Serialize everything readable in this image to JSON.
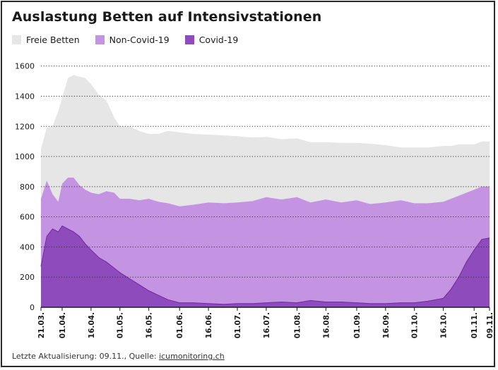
{
  "title": "Auslastung Betten auf Intensivstationen",
  "footer": {
    "prefix": "Letzte Aktualisierung: 09.11., Quelle: ",
    "source_link": "icumonitoring.ch"
  },
  "colors": {
    "freie_betten": "#e6e6e6",
    "non_covid": "#c494e2",
    "covid": "#8e4bbc",
    "covid_edge": "#6e2a9c",
    "grid": "#333333",
    "axis": "#1a1a1a"
  },
  "chart_data": {
    "type": "area",
    "stacked": true,
    "title": "Auslastung Betten auf Intensivstationen",
    "xlabel": "",
    "ylabel": "",
    "ylim": [
      0,
      1650
    ],
    "yticks": [
      0,
      200,
      400,
      600,
      800,
      1000,
      1200,
      1400,
      1600
    ],
    "grid": "horizontal dotted",
    "legend_position": "top-left",
    "x_tick_labels": [
      "21.03.",
      "01.04.",
      "16.04.",
      "01.05.",
      "16.05.",
      "01.06.",
      "16.06.",
      "01.07.",
      "16.07.",
      "01.08.",
      "16.08.",
      "01.09.",
      "16.09.",
      "01.10.",
      "16.10.",
      "01.11.",
      "09.11."
    ],
    "x": [
      "21.03.",
      "24.03.",
      "27.03.",
      "30.03.",
      "01.04.",
      "04.04.",
      "07.04.",
      "10.04.",
      "13.04.",
      "16.04.",
      "20.04.",
      "24.04.",
      "28.04.",
      "01.05.",
      "06.05.",
      "11.05.",
      "16.05.",
      "21.05.",
      "26.05.",
      "01.06.",
      "08.06.",
      "16.06.",
      "24.06.",
      "01.07.",
      "09.07.",
      "16.07.",
      "24.07.",
      "01.08.",
      "08.08.",
      "16.08.",
      "24.08.",
      "01.09.",
      "08.09.",
      "16.09.",
      "24.09.",
      "01.10.",
      "08.10.",
      "16.10.",
      "20.10.",
      "24.10.",
      "28.10.",
      "01.11.",
      "05.11.",
      "09.11."
    ],
    "series": [
      {
        "name": "Covid-19",
        "values": [
          270,
          470,
          520,
          500,
          540,
          520,
          500,
          470,
          420,
          380,
          330,
          300,
          260,
          230,
          190,
          150,
          110,
          80,
          50,
          30,
          30,
          25,
          20,
          25,
          25,
          30,
          35,
          30,
          45,
          35,
          35,
          30,
          25,
          25,
          30,
          30,
          40,
          60,
          120,
          200,
          300,
          380,
          450,
          460
        ]
      },
      {
        "name": "Non-Covid-19",
        "values": [
          450,
          370,
          230,
          200,
          280,
          340,
          360,
          340,
          360,
          380,
          420,
          470,
          500,
          490,
          530,
          560,
          610,
          620,
          640,
          640,
          650,
          670,
          670,
          670,
          680,
          700,
          680,
          700,
          650,
          680,
          660,
          680,
          660,
          670,
          680,
          660,
          650,
          640,
          600,
          540,
          460,
          400,
          350,
          340
        ]
      },
      {
        "name": "Freie Betten",
        "values": [
          330,
          350,
          450,
          600,
          570,
          660,
          680,
          720,
          740,
          720,
          660,
          600,
          500,
          480,
          480,
          460,
          430,
          450,
          480,
          490,
          470,
          450,
          450,
          440,
          420,
          400,
          400,
          390,
          400,
          380,
          395,
          380,
          400,
          380,
          350,
          370,
          370,
          370,
          350,
          340,
          320,
          300,
          300,
          300
        ]
      }
    ]
  }
}
